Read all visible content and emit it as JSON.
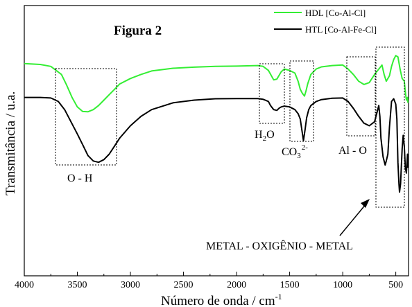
{
  "chart_data": {
    "type": "line",
    "figure_label": "Figura 2",
    "xlabel": "Número de onda / cm",
    "xlabel_sup": "-1",
    "ylabel": "Transmitância / u.a.",
    "xlim": [
      4000,
      380
    ],
    "x_reversed": true,
    "y_ticks_labeled": false,
    "ylim": [
      0,
      100
    ],
    "x_ticks": [
      4000,
      3500,
      3000,
      2500,
      2000,
      1500,
      1000,
      500
    ],
    "x_tick_labels": [
      "4000",
      "3500",
      "3000",
      "2500",
      "2000",
      "1500",
      "1000",
      "500"
    ],
    "legend_position": "top-right",
    "series": [
      {
        "name": "HDL [Co-Al-Cl]",
        "color": "#33ee33",
        "x": [
          4000,
          3850,
          3750,
          3650,
          3600,
          3550,
          3500,
          3450,
          3400,
          3350,
          3300,
          3250,
          3200,
          3150,
          3100,
          3000,
          2900,
          2800,
          2600,
          2400,
          2200,
          2000,
          1900,
          1800,
          1750,
          1700,
          1650,
          1620,
          1580,
          1550,
          1500,
          1450,
          1420,
          1400,
          1380,
          1360,
          1345,
          1330,
          1300,
          1250,
          1200,
          1100,
          1000,
          950,
          900,
          850,
          800,
          750,
          700,
          670,
          650,
          630,
          610,
          590,
          560,
          540,
          520,
          500,
          480,
          460,
          440,
          420,
          410,
          400,
          390,
          385
        ],
        "y": [
          78.5,
          78.2,
          77.5,
          74.5,
          70.5,
          66.0,
          62.5,
          60.8,
          60.7,
          61.5,
          63.0,
          65.0,
          67.0,
          69.0,
          71.0,
          73.0,
          74.5,
          75.8,
          76.8,
          77.2,
          77.5,
          77.6,
          77.7,
          77.8,
          77.5,
          76.0,
          72.5,
          72.8,
          75.5,
          76.5,
          76.0,
          75.0,
          72.0,
          69.0,
          67.5,
          66.5,
          68.5,
          71.0,
          74.5,
          76.5,
          77.3,
          77.8,
          78.0,
          76.5,
          74.5,
          72.0,
          70.8,
          71.5,
          74.5,
          76.0,
          77.0,
          78.0,
          74.5,
          72.0,
          74.0,
          77.5,
          80.0,
          81.5,
          81.0,
          76.5,
          73.0,
          72.0,
          68.0,
          65.0,
          66.0,
          64.0
        ]
      },
      {
        "name": "HTL [Co-Al-Fe-Cl]",
        "color": "#000000",
        "x": [
          4000,
          3850,
          3750,
          3680,
          3620,
          3560,
          3500,
          3450,
          3400,
          3350,
          3300,
          3250,
          3200,
          3150,
          3100,
          3000,
          2900,
          2800,
          2600,
          2400,
          2200,
          2000,
          1800,
          1750,
          1700,
          1680,
          1650,
          1620,
          1600,
          1580,
          1550,
          1500,
          1450,
          1420,
          1400,
          1385,
          1370,
          1355,
          1340,
          1320,
          1300,
          1250,
          1200,
          1100,
          1000,
          950,
          900,
          850,
          800,
          750,
          700,
          680,
          660,
          650,
          640,
          620,
          600,
          590,
          575,
          560,
          540,
          520,
          500,
          490,
          480,
          470,
          465,
          455,
          440,
          430,
          420,
          410,
          400,
          390,
          385
        ],
        "y": [
          66.0,
          66.0,
          65.8,
          64.5,
          61.5,
          57.0,
          52.5,
          48.5,
          44.5,
          42.5,
          42.0,
          43.0,
          45.0,
          48.0,
          51.0,
          55.5,
          59.0,
          61.5,
          64.0,
          65.0,
          65.5,
          65.6,
          65.6,
          65.3,
          64.5,
          63.0,
          61.5,
          61.2,
          62.0,
          62.5,
          62.8,
          62.5,
          61.5,
          60.0,
          58.0,
          54.0,
          50.0,
          54.0,
          58.5,
          61.5,
          63.0,
          64.5,
          65.2,
          65.7,
          65.8,
          64.5,
          62.0,
          59.0,
          56.5,
          55.5,
          57.0,
          60.0,
          63.0,
          59.0,
          51.0,
          44.0,
          41.0,
          42.5,
          45.0,
          55.0,
          64.5,
          65.5,
          63.5,
          58.0,
          42.0,
          34.0,
          31.0,
          34.0,
          47.0,
          52.0,
          48.0,
          40.0,
          38.0,
          45.0,
          40.0
        ]
      }
    ],
    "annotations": {
      "oh": "O - H",
      "h2o_main": "H",
      "h2o_sub": "2",
      "h2o_tail": "O",
      "co3_main": "CO",
      "co3_sub": "3",
      "co3_sup": "2-",
      "alo": "Al - O",
      "mom": "METAL - OXIGÊNIO - METAL"
    }
  }
}
